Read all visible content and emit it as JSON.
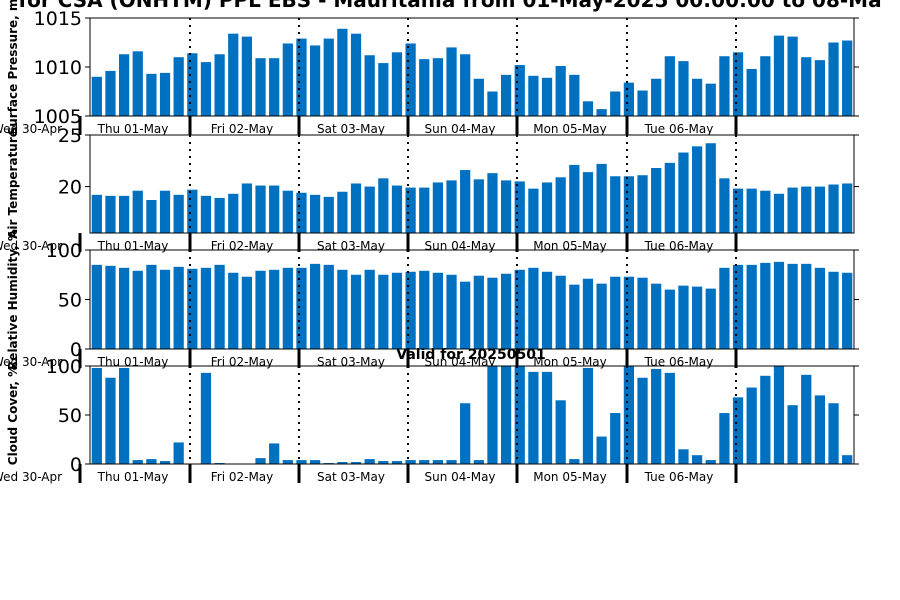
{
  "page": {
    "title": "for CSA (ONHTM) PPL EBS - Mauritania from 01-May-2025 00:00:00 to 08-Ma",
    "valid_text": "Valid for 20250501"
  },
  "colors": {
    "bar": "#0070c0",
    "axis": "#000000",
    "divider": "#000000"
  },
  "x_axis": {
    "day_labels": [
      "Wed 30-Apr",
      "Thu 01-May",
      "Fri 02-May",
      "Sat 03-May",
      "Sun 04-May",
      "Mon 05-May",
      "Tue 06-May"
    ]
  },
  "chart_data": [
    {
      "type": "bar",
      "ylabel": "Surface Pressure, m",
      "ylim": [
        1005,
        1015
      ],
      "yticks": [
        "1005",
        "1010",
        "1015"
      ],
      "grid": false,
      "values": [
        1009.0,
        1009.6,
        1011.3,
        1011.6,
        1009.3,
        1009.4,
        1011.0,
        1011.4,
        1010.5,
        1011.3,
        1013.4,
        1013.1,
        1010.9,
        1010.9,
        1012.4,
        1012.9,
        1012.2,
        1012.9,
        1013.9,
        1013.4,
        1011.2,
        1010.4,
        1011.5,
        1012.4,
        1010.8,
        1010.9,
        1012.0,
        1011.3,
        1008.8,
        1007.5,
        1009.2,
        1010.2,
        1009.1,
        1008.9,
        1010.1,
        1009.2,
        1006.5,
        1005.7,
        1007.5,
        1008.4,
        1007.6,
        1008.8,
        1011.1,
        1010.6,
        1008.8,
        1008.3,
        1011.1,
        1011.5,
        1009.8,
        1011.1,
        1013.2,
        1013.1,
        1011.0,
        1010.7,
        1012.5,
        1012.7
      ]
    },
    {
      "type": "bar",
      "ylabel": "Air Temperature",
      "ylim": [
        15.5,
        25
      ],
      "yticks": [
        "20",
        "25"
      ],
      "grid": false,
      "values": [
        19.2,
        19.1,
        19.1,
        19.6,
        18.7,
        19.6,
        19.2,
        19.7,
        19.1,
        18.9,
        19.3,
        20.3,
        20.1,
        20.1,
        19.6,
        19.4,
        19.2,
        19.0,
        19.5,
        20.3,
        20.0,
        20.8,
        20.1,
        19.9,
        19.9,
        20.4,
        20.6,
        21.6,
        20.7,
        21.3,
        20.6,
        20.5,
        19.8,
        20.4,
        20.9,
        22.1,
        21.4,
        22.2,
        21.0,
        21.0,
        21.1,
        21.8,
        22.3,
        23.3,
        23.9,
        24.2,
        20.8,
        19.8,
        19.8,
        19.6,
        19.3,
        19.9,
        20.0,
        20.0,
        20.2,
        20.3
      ]
    },
    {
      "type": "bar",
      "ylabel": "Relative Humidity, %",
      "ylim": [
        0,
        100
      ],
      "yticks": [
        "0",
        "50",
        "100"
      ],
      "grid": false,
      "values": [
        85,
        84,
        82,
        79,
        85,
        80,
        83,
        81,
        82,
        85,
        77,
        73,
        79,
        80,
        82,
        82,
        86,
        85,
        80,
        75,
        80,
        75,
        77,
        78,
        79,
        77,
        75,
        68,
        74,
        72,
        76,
        80,
        82,
        78,
        74,
        65,
        71,
        66,
        73,
        73,
        72,
        66,
        60,
        64,
        63,
        61,
        82,
        85,
        85,
        87,
        88,
        86,
        86,
        82,
        78,
        77
      ]
    },
    {
      "type": "bar",
      "ylabel": "Cloud Cover, %",
      "ylim": [
        0,
        100
      ],
      "yticks": [
        "0",
        "50",
        "100"
      ],
      "grid": false,
      "values": [
        98,
        88,
        98,
        4,
        5,
        3,
        22,
        0,
        93,
        1,
        0,
        0,
        6,
        21,
        4,
        4,
        4,
        1,
        2,
        2,
        5,
        3,
        3,
        4,
        4,
        4,
        4,
        62,
        4,
        100,
        100,
        100,
        94,
        94,
        65,
        5,
        98,
        28,
        52,
        100,
        88,
        97,
        93,
        15,
        9,
        4,
        52,
        68,
        78,
        90,
        100,
        60,
        91,
        70,
        62,
        9
      ]
    }
  ]
}
